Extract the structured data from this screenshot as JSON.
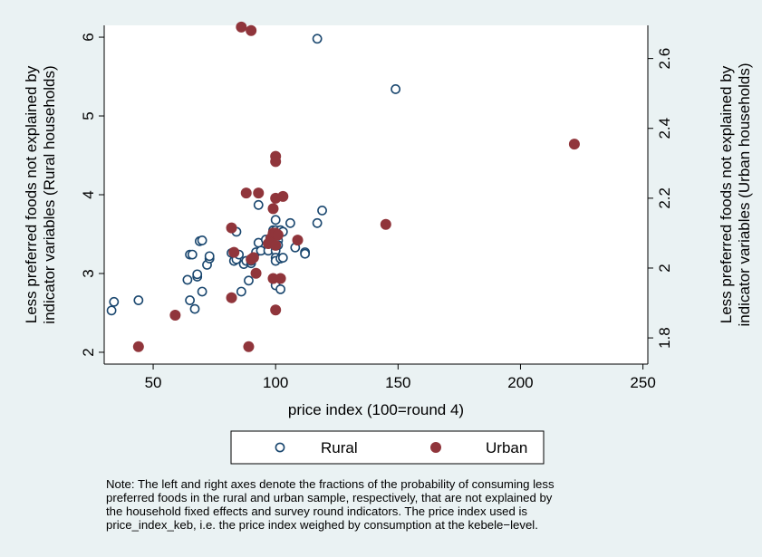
{
  "colors": {
    "background": "#eaf2f3",
    "plot_area": "#ffffff",
    "rural": "#1a476f",
    "urban": "#90353b"
  },
  "chart_data": {
    "type": "scatter",
    "xlabel": "price index (100=round 4)",
    "ylabel_left": [
      "Less preferred foods not explained by",
      "indicator variables (Rural households)"
    ],
    "ylabel_right": [
      "Less preferred foods not explained by",
      "indicator variables (Urban households)"
    ],
    "xlim": [
      30,
      252
    ],
    "ylim_left": [
      1.85,
      6.15
    ],
    "ylim_right": [
      1.725,
      2.695
    ],
    "xticks": [
      50,
      100,
      150,
      200,
      250
    ],
    "yticks_left": [
      2,
      3,
      4,
      5,
      6
    ],
    "yticks_right": [
      1.8,
      2,
      2.2,
      2.4,
      2.6
    ],
    "ytick_labels_left": [
      "2",
      "3",
      "4",
      "5",
      "6"
    ],
    "ytick_labels_right": [
      "1.8",
      "2",
      "2.2",
      "2.4",
      "2.6"
    ],
    "grid": false,
    "legend": {
      "position": "bottom",
      "entries": [
        "Rural",
        "Urban"
      ]
    },
    "series": [
      {
        "name": "Rural",
        "axis": "left",
        "marker": "hollow-circle",
        "points": [
          [
            33,
            2.53
          ],
          [
            34,
            2.64
          ],
          [
            44,
            2.66
          ],
          [
            64,
            2.92
          ],
          [
            65,
            2.66
          ],
          [
            65,
            3.24
          ],
          [
            66,
            3.24
          ],
          [
            67,
            2.55
          ],
          [
            68,
            2.96
          ],
          [
            68,
            2.99
          ],
          [
            69,
            3.41
          ],
          [
            70,
            3.42
          ],
          [
            70,
            2.77
          ],
          [
            72,
            3.11
          ],
          [
            73,
            3.19
          ],
          [
            73,
            3.22
          ],
          [
            82,
            3.26
          ],
          [
            83,
            3.16
          ],
          [
            84,
            3.18
          ],
          [
            84,
            3.53
          ],
          [
            85,
            3.24
          ],
          [
            86,
            2.77
          ],
          [
            87,
            3.12
          ],
          [
            88,
            3.16
          ],
          [
            89,
            2.91
          ],
          [
            90,
            3.13
          ],
          [
            90,
            3.16
          ],
          [
            92,
            3.27
          ],
          [
            93,
            3.39
          ],
          [
            93,
            3.87
          ],
          [
            94,
            3.29
          ],
          [
            96,
            3.43
          ],
          [
            97,
            3.37
          ],
          [
            97,
            3.29
          ],
          [
            98,
            3.38
          ],
          [
            99,
            3.43
          ],
          [
            99,
            3.38
          ],
          [
            99,
            3.55
          ],
          [
            100,
            3.55
          ],
          [
            100,
            3.45
          ],
          [
            100,
            3.39
          ],
          [
            100,
            3.29
          ],
          [
            100,
            3.68
          ],
          [
            100,
            3.52
          ],
          [
            100,
            3.2
          ],
          [
            100,
            3.16
          ],
          [
            100,
            2.85
          ],
          [
            101,
            3.5
          ],
          [
            101,
            3.42
          ],
          [
            101,
            3.36
          ],
          [
            102,
            3.55
          ],
          [
            102,
            3.19
          ],
          [
            102,
            2.8
          ],
          [
            103,
            3.2
          ],
          [
            103,
            3.53
          ],
          [
            106,
            3.64
          ],
          [
            108,
            3.33
          ],
          [
            112,
            3.27
          ],
          [
            112,
            3.25
          ],
          [
            117,
            3.64
          ],
          [
            117,
            5.98
          ],
          [
            119,
            3.8
          ],
          [
            149,
            5.34
          ]
        ]
      },
      {
        "name": "Urban",
        "axis": "right",
        "marker": "solid-circle",
        "points": [
          [
            44,
            1.775
          ],
          [
            59,
            1.865
          ],
          [
            82,
            1.915
          ],
          [
            82,
            2.115
          ],
          [
            83,
            2.045
          ],
          [
            86,
            2.69
          ],
          [
            88,
            2.215
          ],
          [
            89,
            1.775
          ],
          [
            90,
            2.68
          ],
          [
            90,
            2.025
          ],
          [
            91,
            2.03
          ],
          [
            92,
            1.985
          ],
          [
            93,
            2.215
          ],
          [
            97,
            2.07
          ],
          [
            98,
            2.085
          ],
          [
            99,
            2.17
          ],
          [
            99,
            2.1
          ],
          [
            99,
            1.97
          ],
          [
            100,
            2.32
          ],
          [
            100,
            2.305
          ],
          [
            100,
            2.2
          ],
          [
            100,
            2.1
          ],
          [
            100,
            2.065
          ],
          [
            100,
            1.88
          ],
          [
            101,
            2.095
          ],
          [
            102,
            1.97
          ],
          [
            103,
            2.205
          ],
          [
            109,
            2.08
          ],
          [
            145,
            2.125
          ],
          [
            222,
            2.355
          ]
        ]
      }
    ],
    "note": [
      "Note: The left and right axes denote the fractions of the probability of consuming less",
      "preferred foods in the rural and urban sample, respectively, that are not explained by",
      "the household fixed effects and survey round indicators. The price index used is",
      "price_index_keb, i.e. the price index weighed by consumption at the kebele−level."
    ]
  }
}
